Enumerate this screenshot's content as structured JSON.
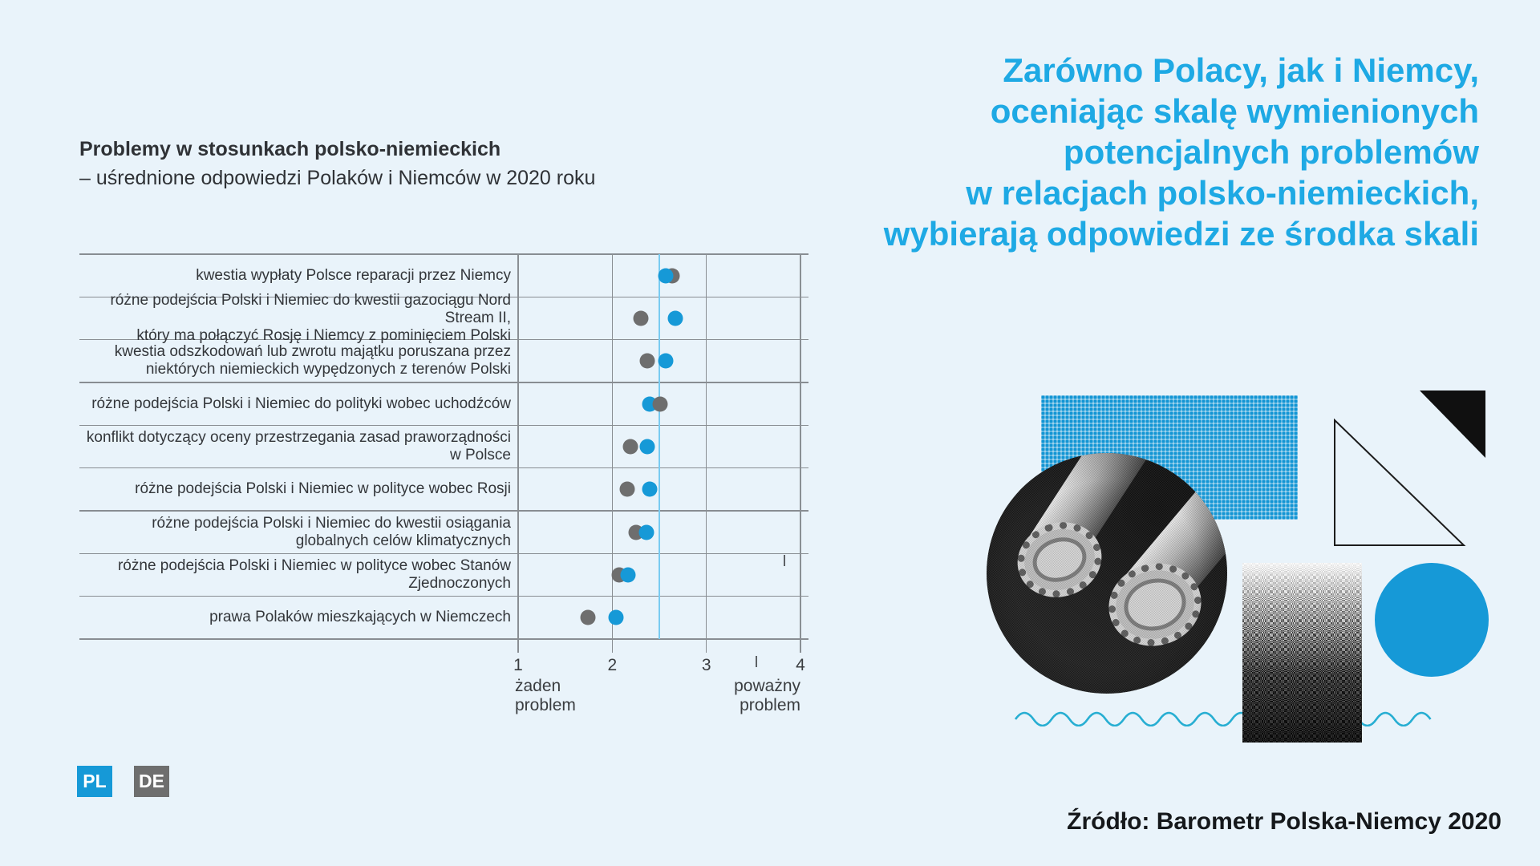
{
  "colors": {
    "background": "#e9f3fa",
    "accent_blue": "#1699d7",
    "headline_blue": "#1ea9e4",
    "dot_gray": "#6e6e6e",
    "grid_gray": "#888d92",
    "midline_blue": "#79cbf1",
    "text_dark": "#33363a"
  },
  "headline": {
    "text": "Zarówno Polacy, jak i Niemcy,\noceniając skalę wymienionych\npotencjalnych problemów\nw relacjach polsko-niemieckich,\nwybierają odpowiedzi ze środka skali"
  },
  "source": {
    "text": "Źródło: Barometr Polska-Niemcy 2020"
  },
  "lang_buttons": {
    "pl": "PL",
    "de": "DE"
  },
  "chart_data": {
    "type": "scatter",
    "title": "Problemy w stosunkach polsko-niemieckich",
    "subtitle": "– uśrednione odpowiedzi Polaków i Niemców w 2020 roku",
    "categories": [
      "kwestia wypłaty Polsce reparacji przez Niemcy",
      "różne podejścia Polski i Niemiec do kwestii gazociągu Nord Stream II,\nktóry ma połączyć Rosję i Niemcy z pominięciem Polski",
      "kwestia odszkodowań lub zwrotu majątku poruszana przez\nniektórych niemieckich wypędzonych z terenów Polski",
      "różne podejścia Polski i Niemiec do polityki wobec uchodźców",
      "konflikt dotyczący oceny przestrzegania zasad praworządności w Polsce",
      "różne podejścia Polski i Niemiec w polityce wobec Rosji",
      "różne podejścia Polski i Niemiec do kwestii osiągania\nglobalnych celów klimatycznych",
      "różne podejścia Polski i Niemiec w polityce wobec Stanów Zjednoczonych",
      "prawa Polaków mieszkających w Niemczech"
    ],
    "series": [
      {
        "name": "PL",
        "color": "#1699d7",
        "values": [
          2.57,
          2.67,
          2.57,
          2.4,
          2.37,
          2.4,
          2.36,
          2.17,
          2.04
        ]
      },
      {
        "name": "DE",
        "color": "#6e6e6e",
        "values": [
          2.64,
          2.3,
          2.37,
          2.51,
          2.19,
          2.16,
          2.25,
          2.07,
          1.74
        ]
      }
    ],
    "top_order": [
      "pl",
      "pl",
      "pl",
      "de",
      "pl",
      "pl",
      "pl",
      "pl",
      "pl"
    ],
    "xlim": [
      1,
      4
    ],
    "xticks": [
      1,
      2,
      3,
      4
    ],
    "midline_x": 2.5,
    "x_low_caption": "żaden\nproblem",
    "x_high_caption": "poważny\nproblem",
    "grid": true,
    "legend_position": "bottom-left-buttons"
  }
}
